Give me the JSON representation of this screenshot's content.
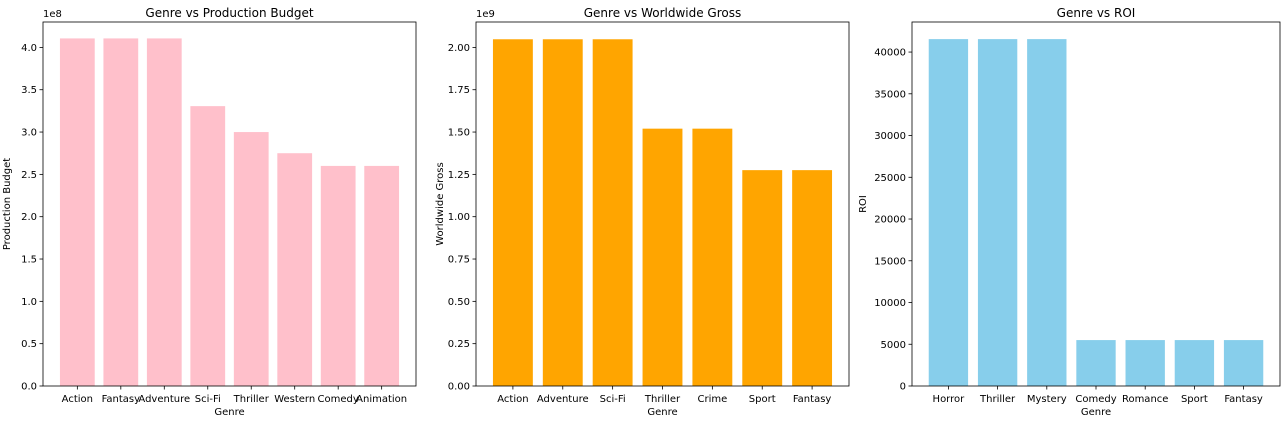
{
  "chart_data": [
    {
      "type": "bar",
      "title": "Genre vs Production Budget",
      "xlabel": "Genre",
      "ylabel": "Production Budget",
      "offset_text": "1e8",
      "color": "#ffc0cb",
      "categories": [
        "Action",
        "Fantasy",
        "Adventure",
        "Sci-Fi",
        "Thriller",
        "Western",
        "Comedy",
        "Animation"
      ],
      "values": [
        410600000,
        410600000,
        410600000,
        330600000,
        300000000,
        275000000,
        260000000,
        260000000
      ],
      "ylim": [
        0,
        430000000
      ],
      "yticks": [
        0,
        50000000,
        100000000,
        150000000,
        200000000,
        250000000,
        300000000,
        350000000,
        400000000
      ],
      "ytick_labels": [
        "0.0",
        "0.5",
        "1.0",
        "1.5",
        "2.0",
        "2.5",
        "3.0",
        "3.5",
        "4.0"
      ],
      "grid": false
    },
    {
      "type": "bar",
      "title": "Genre vs Worldwide Gross",
      "xlabel": "Genre",
      "ylabel": "Worldwide Gross",
      "offset_text": "1e9",
      "color": "#ffa500",
      "categories": [
        "Action",
        "Adventure",
        "Sci-Fi",
        "Thriller",
        "Crime",
        "Sport",
        "Fantasy"
      ],
      "values": [
        2048000000,
        2048000000,
        2048000000,
        1520000000,
        1520000000,
        1275000000,
        1275000000
      ],
      "ylim": [
        0,
        2150000000
      ],
      "yticks": [
        0,
        250000000,
        500000000,
        750000000,
        1000000000,
        1250000000,
        1500000000,
        1750000000,
        2000000000
      ],
      "ytick_labels": [
        "0.00",
        "0.25",
        "0.50",
        "0.75",
        "1.00",
        "1.25",
        "1.50",
        "1.75",
        "2.00"
      ],
      "grid": false
    },
    {
      "type": "bar",
      "title": "Genre vs ROI",
      "xlabel": "Genre",
      "ylabel": "ROI",
      "offset_text": "",
      "color": "#87ceeb",
      "categories": [
        "Horror",
        "Thriller",
        "Mystery",
        "Comedy",
        "Romance",
        "Sport",
        "Fantasy"
      ],
      "values": [
        41550,
        41550,
        41550,
        5500,
        5500,
        5500,
        5500
      ],
      "ylim": [
        0,
        43600
      ],
      "yticks": [
        0,
        5000,
        10000,
        15000,
        20000,
        25000,
        30000,
        35000,
        40000
      ],
      "ytick_labels": [
        "0",
        "5000",
        "10000",
        "15000",
        "20000",
        "25000",
        "30000",
        "35000",
        "40000"
      ],
      "grid": false
    }
  ]
}
